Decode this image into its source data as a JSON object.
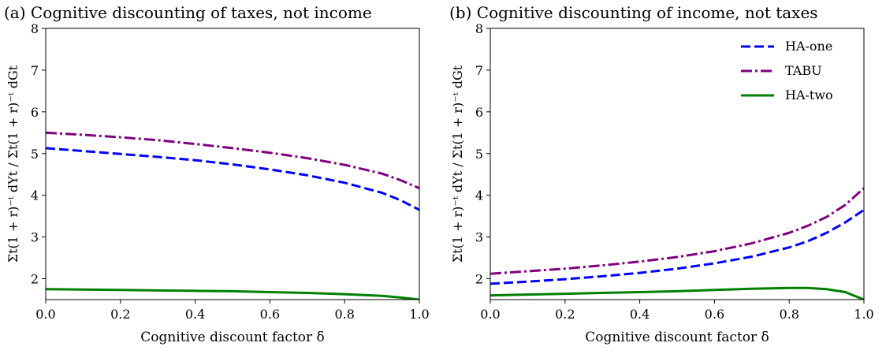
{
  "chart_data": [
    {
      "type": "line",
      "title": "(a) Cognitive discounting of taxes, not income",
      "xlabel": "Cognitive discount factor δ",
      "ylabel": "Σt(1 + r)⁻ᵗ dYt / Σt(1 + r)⁻ᵗ dGt",
      "xlim": [
        0.0,
        1.0
      ],
      "ylim": [
        1.5,
        8.0
      ],
      "xticks": [
        "0.0",
        "0.2",
        "0.4",
        "0.6",
        "0.8",
        "1.0"
      ],
      "yticks": [
        "2",
        "3",
        "4",
        "5",
        "6",
        "7",
        "8"
      ],
      "legend": false,
      "x": [
        0.0,
        0.1,
        0.2,
        0.3,
        0.4,
        0.5,
        0.6,
        0.7,
        0.8,
        0.9,
        0.95,
        1.0
      ],
      "series": [
        {
          "name": "HA-one",
          "color": "#0000ff",
          "style": "dashed",
          "values": [
            5.13,
            5.06,
            4.99,
            4.92,
            4.84,
            4.74,
            4.62,
            4.48,
            4.3,
            4.06,
            3.88,
            3.65
          ]
        },
        {
          "name": "TABU",
          "color": "#800080",
          "style": "dashdot",
          "values": [
            5.5,
            5.45,
            5.39,
            5.32,
            5.23,
            5.13,
            5.02,
            4.89,
            4.73,
            4.52,
            4.36,
            4.17
          ]
        },
        {
          "name": "HA-two",
          "color": "#008000",
          "style": "solid",
          "values": [
            1.75,
            1.74,
            1.73,
            1.72,
            1.71,
            1.7,
            1.68,
            1.66,
            1.63,
            1.59,
            1.55,
            1.5
          ]
        }
      ]
    },
    {
      "type": "line",
      "title": "(b) Cognitive discounting of income, not taxes",
      "xlabel": "Cognitive discount factor δ",
      "ylabel": "Σt(1 + r)⁻ᵗ dYt / Σt(1 + r)⁻ᵗ dGt",
      "xlim": [
        0.0,
        1.0
      ],
      "ylim": [
        1.5,
        8.0
      ],
      "xticks": [
        "0.0",
        "0.2",
        "0.4",
        "0.6",
        "0.8",
        "1.0"
      ],
      "yticks": [
        "2",
        "3",
        "4",
        "5",
        "6",
        "7",
        "8"
      ],
      "legend": true,
      "legend_position": "top-right",
      "x": [
        0.0,
        0.1,
        0.2,
        0.3,
        0.4,
        0.5,
        0.6,
        0.7,
        0.8,
        0.85,
        0.9,
        0.95,
        1.0
      ],
      "series": [
        {
          "name": "HA-one",
          "color": "#0000ff",
          "style": "dashed",
          "values": [
            1.88,
            1.93,
            1.99,
            2.06,
            2.14,
            2.24,
            2.37,
            2.53,
            2.75,
            2.9,
            3.1,
            3.35,
            3.65
          ]
        },
        {
          "name": "TABU",
          "color": "#800080",
          "style": "dashdot",
          "values": [
            2.12,
            2.18,
            2.24,
            2.32,
            2.41,
            2.52,
            2.66,
            2.85,
            3.1,
            3.27,
            3.48,
            3.77,
            4.17
          ]
        },
        {
          "name": "HA-two",
          "color": "#008000",
          "style": "solid",
          "values": [
            1.6,
            1.62,
            1.64,
            1.66,
            1.68,
            1.7,
            1.73,
            1.76,
            1.78,
            1.78,
            1.75,
            1.68,
            1.5
          ]
        }
      ]
    }
  ]
}
